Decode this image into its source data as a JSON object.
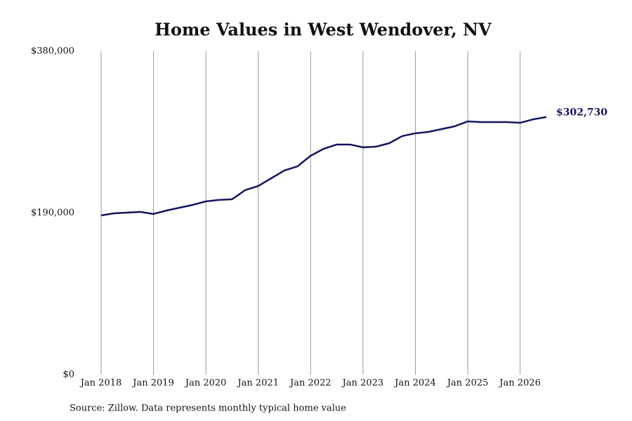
{
  "chart_data": {
    "type": "line",
    "title": "Home Values in West Wendover, NV",
    "source": "Source: Zillow. Data represents monthly typical home value",
    "x": [
      "2018-01",
      "2018-04",
      "2018-07",
      "2018-10",
      "2019-01",
      "2019-04",
      "2019-07",
      "2019-10",
      "2020-01",
      "2020-04",
      "2020-07",
      "2020-10",
      "2021-01",
      "2021-04",
      "2021-07",
      "2021-10",
      "2022-01",
      "2022-04",
      "2022-07",
      "2022-10",
      "2023-01",
      "2023-04",
      "2023-07",
      "2023-10",
      "2024-01",
      "2024-04",
      "2024-07",
      "2024-10",
      "2025-01",
      "2025-04",
      "2025-07",
      "2025-10",
      "2026-01",
      "2026-04",
      "2026-07"
    ],
    "series": [
      {
        "name": "West Wendover, NV",
        "color": "#14145e",
        "end_label": "$302,730",
        "values": [
          187100,
          189600,
          190400,
          191200,
          188800,
          192900,
          196200,
          199500,
          203600,
          205300,
          206100,
          216800,
          221700,
          230800,
          239900,
          244800,
          257200,
          265400,
          270400,
          270400,
          267100,
          267900,
          271900,
          280300,
          283600,
          285200,
          288500,
          291800,
          297600,
          296700,
          296700,
          296700,
          295900,
          300000,
          302730
        ]
      }
    ],
    "xlim": [
      "2018-01",
      "2026-07"
    ],
    "xticks": [
      {
        "value": "2018-01",
        "label": "Jan 2018"
      },
      {
        "value": "2019-01",
        "label": "Jan 2019"
      },
      {
        "value": "2020-01",
        "label": "Jan 2020"
      },
      {
        "value": "2021-01",
        "label": "Jan 2021"
      },
      {
        "value": "2022-01",
        "label": "Jan 2022"
      },
      {
        "value": "2023-01",
        "label": "Jan 2023"
      },
      {
        "value": "2024-01",
        "label": "Jan 2024"
      },
      {
        "value": "2025-01",
        "label": "Jan 2025"
      },
      {
        "value": "2026-01",
        "label": "Jan 2026"
      }
    ],
    "ylim": [
      0,
      380000
    ],
    "yticks": [
      {
        "value": 0,
        "label": "$0"
      },
      {
        "value": 190000,
        "label": "$190,000"
      },
      {
        "value": 380000,
        "label": "$380,000"
      }
    ],
    "grid": true
  }
}
